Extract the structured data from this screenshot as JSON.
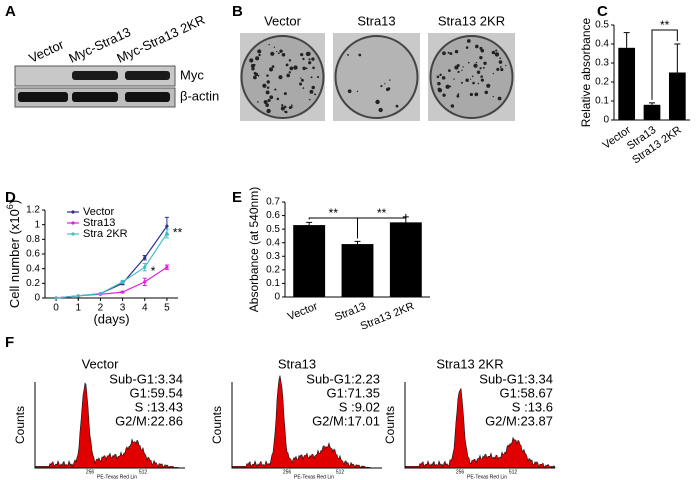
{
  "panel_labels": [
    "A",
    "B",
    "C",
    "D",
    "E",
    "F"
  ],
  "blot": {
    "lanes": [
      "Vector",
      "Myc-Stra13",
      "Myc-Stra13 2KR"
    ],
    "bands": [
      "Myc",
      "β-actin"
    ]
  },
  "colonies": {
    "labels": [
      "Vector",
      "Stra13",
      "Stra13 2KR"
    ]
  },
  "chart_data": [
    {
      "type": "bar",
      "ylabel": "Relative absorbance",
      "categories": [
        "Vector",
        "Stra13",
        "Stra13 2KR"
      ],
      "values": [
        0.38,
        0.08,
        0.25
      ],
      "errors": [
        0.08,
        0.01,
        0.15
      ],
      "color": "#000000",
      "ylim": [
        0,
        0.5
      ],
      "yticks": [
        0,
        0.1,
        0.2,
        0.3,
        0.4,
        0.5
      ],
      "annotations": [
        "**"
      ]
    },
    {
      "type": "line",
      "xlabel": "(days)",
      "ylabel": [
        "Cell number (x10",
        "6",
        ")"
      ],
      "x": [
        0,
        1,
        2,
        3,
        4,
        5
      ],
      "xlim": [
        -0.5,
        5.5
      ],
      "xticks": [
        0,
        1,
        2,
        3,
        4,
        5
      ],
      "ylim": [
        0,
        1.2
      ],
      "yticks": [
        0,
        0.2,
        0.4,
        0.6,
        0.8,
        1,
        1.2
      ],
      "series": [
        {
          "name": "Vector",
          "color": "#2e3192",
          "values": [
            0,
            0.03,
            0.06,
            0.2,
            0.55,
            0.98
          ],
          "errors": [
            0,
            0,
            0,
            0.02,
            0.03,
            0.12
          ]
        },
        {
          "name": "Stra13",
          "color": "#e020e0",
          "values": [
            0,
            0.03,
            0.05,
            0.08,
            0.22,
            0.42
          ],
          "errors": [
            0,
            0,
            0,
            0.01,
            0.05,
            0.03
          ]
        },
        {
          "name": "Stra 2KR",
          "color": "#40c0c0",
          "values": [
            0,
            0.03,
            0.06,
            0.22,
            0.42,
            0.88
          ],
          "errors": [
            0,
            0,
            0,
            0.02,
            0.05,
            0.06
          ]
        }
      ],
      "legend": "upper left",
      "annotations": [
        "*",
        "**"
      ]
    },
    {
      "type": "bar",
      "ylabel": "Absorbance (at 540nm)",
      "categories": [
        "Vector",
        "Stra13",
        "Stra13 2KR"
      ],
      "values": [
        0.53,
        0.39,
        0.55
      ],
      "errors": [
        0.02,
        0.02,
        0.04
      ],
      "color": "#000000",
      "ylim": [
        0,
        0.7
      ],
      "yticks": [
        0,
        0.1,
        0.2,
        0.3,
        0.4,
        0.5,
        0.6,
        0.7
      ],
      "annotations": [
        "**",
        "**"
      ]
    }
  ],
  "histograms": [
    {
      "title": "Vector",
      "stats": [
        "Sub-G1:3.34",
        "G1:59.54",
        "S :13.43",
        "G2/M:22.86"
      ]
    },
    {
      "title": "Stra13",
      "stats": [
        "Sub-G1:2.23",
        "G1:71.35",
        "S :9.02",
        "G2/M:17.01"
      ]
    },
    {
      "title": "Stra13 2KR",
      "stats": [
        "Sub-G1:3.34",
        "G1:58.67",
        "S :13.6",
        "G2/M:23.87"
      ]
    }
  ],
  "histogram_axis": {
    "ylabel": "Counts",
    "ticks": [
      "256",
      "512"
    ],
    "xlabel": "PE-Texas Red Lin"
  }
}
